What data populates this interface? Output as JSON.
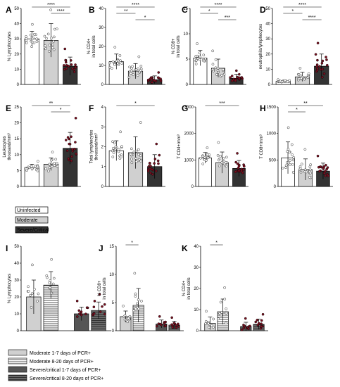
{
  "colors": {
    "uninfected": "#ffffff",
    "moderate": "#d0d0d0",
    "severe": "#333333",
    "severe_point": "#7a1020",
    "moderate_point": "#ffffff",
    "axis": "#000000"
  },
  "legend_top": [
    {
      "label": "Uninfected",
      "fill": "#ffffff",
      "pattern": "none"
    },
    {
      "label": "Moderate",
      "fill": "#d0d0d0",
      "pattern": "none"
    },
    {
      "label": "Severe/Critical",
      "fill": "#333333",
      "pattern": "none"
    }
  ],
  "legend_bottom": [
    {
      "label": "Moderate  1-7 days of PCR+",
      "fill": "#d0d0d0",
      "pattern": "none"
    },
    {
      "label": "Moderate  8-20 days of PCR+",
      "fill": "#ffffff",
      "pattern": "hstripe"
    },
    {
      "label": "Severe/critical 1-7 days of PCR+",
      "fill": "#555555",
      "pattern": "none"
    },
    {
      "label": "Severe/critical 8-20 days of PCR+",
      "fill": "#333333",
      "pattern": "hstripe"
    }
  ],
  "chart_data": [
    {
      "id": "A",
      "panel_label": "A",
      "type": "bar",
      "ylabel": "%  Lymphocytes",
      "ylim": [
        0,
        50
      ],
      "yticks": [
        "0",
        "10",
        "20",
        "30",
        "40",
        "50"
      ],
      "bars": [
        {
          "mean": 30,
          "err": 5
        },
        {
          "mean": 29,
          "err": 11
        },
        {
          "mean": 12,
          "err": 6
        }
      ],
      "significance": [
        {
          "from": 0,
          "to": 2,
          "label": "****"
        },
        {
          "from": 1,
          "to": 2,
          "label": "****"
        }
      ]
    },
    {
      "id": "B",
      "panel_label": "B",
      "type": "bar",
      "ylabel": "% CD4+ in total cells",
      "ylim": [
        0,
        40
      ],
      "yticks": [
        "0",
        "10",
        "20",
        "30",
        "40"
      ],
      "bars": [
        {
          "mean": 12,
          "err": 4
        },
        {
          "mean": 7,
          "err": 4
        },
        {
          "mean": 2.5,
          "err": 2
        }
      ],
      "significance": [
        {
          "from": 0,
          "to": 2,
          "label": "****"
        },
        {
          "from": 0,
          "to": 1,
          "label": "**"
        },
        {
          "from": 1,
          "to": 2,
          "label": "*"
        }
      ]
    },
    {
      "id": "C",
      "panel_label": "C",
      "type": "bar",
      "ylabel": "% CD8+ in total cells",
      "ylim": [
        0,
        15
      ],
      "yticks": [
        "0",
        "5",
        "10",
        "15"
      ],
      "bars": [
        {
          "mean": 5.2,
          "err": 1.5
        },
        {
          "mean": 3.2,
          "err": 1.8
        },
        {
          "mean": 1.2,
          "err": 0.8
        }
      ],
      "significance": [
        {
          "from": 0,
          "to": 2,
          "label": "****"
        },
        {
          "from": 0,
          "to": 1,
          "label": "*"
        },
        {
          "from": 1,
          "to": 2,
          "label": "***"
        }
      ]
    },
    {
      "id": "D",
      "panel_label": "D",
      "type": "bar",
      "ylabel": "neutrophils/lymphocytes",
      "ylim": [
        0,
        50
      ],
      "yticks": [
        "0",
        "10",
        "20",
        "30",
        "40",
        "50"
      ],
      "bars": [
        {
          "mean": 2,
          "err": 0.6
        },
        {
          "mean": 5,
          "err": 3
        },
        {
          "mean": 12,
          "err": 8
        }
      ],
      "significance": [
        {
          "from": 0,
          "to": 2,
          "label": "****"
        },
        {
          "from": 0,
          "to": 1,
          "label": "*"
        },
        {
          "from": 1,
          "to": 2,
          "label": "****"
        }
      ]
    },
    {
      "id": "E",
      "panel_label": "E",
      "type": "bar",
      "ylabel": "Leukocytes thousand/mm³",
      "ylim": [
        0,
        25
      ],
      "yticks": [
        "0",
        "5",
        "10",
        "15",
        "20",
        "25"
      ],
      "bars": [
        {
          "mean": 6,
          "err": 1
        },
        {
          "mean": 7,
          "err": 2
        },
        {
          "mean": 12,
          "err": 5
        }
      ],
      "significance": [
        {
          "from": 0,
          "to": 2,
          "label": "**"
        },
        {
          "from": 1,
          "to": 2,
          "label": "*"
        }
      ]
    },
    {
      "id": "F",
      "panel_label": "F",
      "type": "bar",
      "ylabel": "Total lymphocytes thousand/mm³",
      "ylim": [
        0,
        4
      ],
      "yticks": [
        "0",
        "1",
        "2",
        "3",
        "4"
      ],
      "bars": [
        {
          "mean": 1.8,
          "err": 0.5
        },
        {
          "mean": 1.7,
          "err": 0.8
        },
        {
          "mean": 1.0,
          "err": 0.6
        }
      ],
      "significance": [
        {
          "from": 0,
          "to": 2,
          "label": "*"
        }
      ]
    },
    {
      "id": "G",
      "panel_label": "G",
      "type": "bar",
      "ylabel": "T CD4+/mm³",
      "ylim": [
        0,
        3000
      ],
      "yticks": [
        "0",
        "1000",
        "2000",
        "3000"
      ],
      "bars": [
        {
          "mean": 1080,
          "err": 200
        },
        {
          "mean": 900,
          "err": 400
        },
        {
          "mean": 680,
          "err": 300
        }
      ],
      "significance": [
        {
          "from": 0,
          "to": 2,
          "label": "***"
        }
      ]
    },
    {
      "id": "H",
      "panel_label": "H",
      "type": "bar",
      "ylabel": "T CD8+/mm³",
      "ylim": [
        0,
        1500
      ],
      "yticks": [
        "0",
        "500",
        "1000",
        "1500"
      ],
      "bars": [
        {
          "mean": 540,
          "err": 300
        },
        {
          "mean": 320,
          "err": 200
        },
        {
          "mean": 290,
          "err": 150
        }
      ],
      "significance": [
        {
          "from": 0,
          "to": 2,
          "label": "**"
        },
        {
          "from": 0,
          "to": 1,
          "label": "*"
        }
      ]
    },
    {
      "id": "I",
      "panel_label": "I",
      "type": "bar",
      "ylabel": "% Lymphocytes",
      "ylim": [
        0,
        50
      ],
      "yticks": [
        "0",
        "10",
        "20",
        "30",
        "40",
        "50"
      ],
      "bars": [
        {
          "mean": 20,
          "err": 10
        },
        {
          "mean": 27,
          "err": 8
        },
        {
          "mean": 10,
          "err": 4
        },
        {
          "mean": 12,
          "err": 5
        }
      ],
      "significance": []
    },
    {
      "id": "J",
      "panel_label": "J",
      "type": "bar",
      "ylabel": "% CD8+ in total cells",
      "ylim": [
        0,
        15
      ],
      "yticks": [
        "0",
        "5",
        "10",
        "15"
      ],
      "bars": [
        {
          "mean": 2.5,
          "err": 1
        },
        {
          "mean": 4.5,
          "err": 3
        },
        {
          "mean": 1.2,
          "err": 0.7
        },
        {
          "mean": 1.0,
          "err": 0.7
        }
      ],
      "significance": [
        {
          "from": 0,
          "to": 1,
          "label": "*"
        }
      ]
    },
    {
      "id": "K",
      "panel_label": "K",
      "type": "bar",
      "ylabel": "% CD4+ in total cells",
      "ylim": [
        0,
        40
      ],
      "yticks": [
        "0",
        "10",
        "20",
        "30",
        "40"
      ],
      "bars": [
        {
          "mean": 3.5,
          "err": 3
        },
        {
          "mean": 9,
          "err": 6
        },
        {
          "mean": 2,
          "err": 2
        },
        {
          "mean": 3,
          "err": 2.5
        }
      ],
      "significance": [
        {
          "from": 0,
          "to": 1,
          "label": "*"
        }
      ]
    }
  ]
}
